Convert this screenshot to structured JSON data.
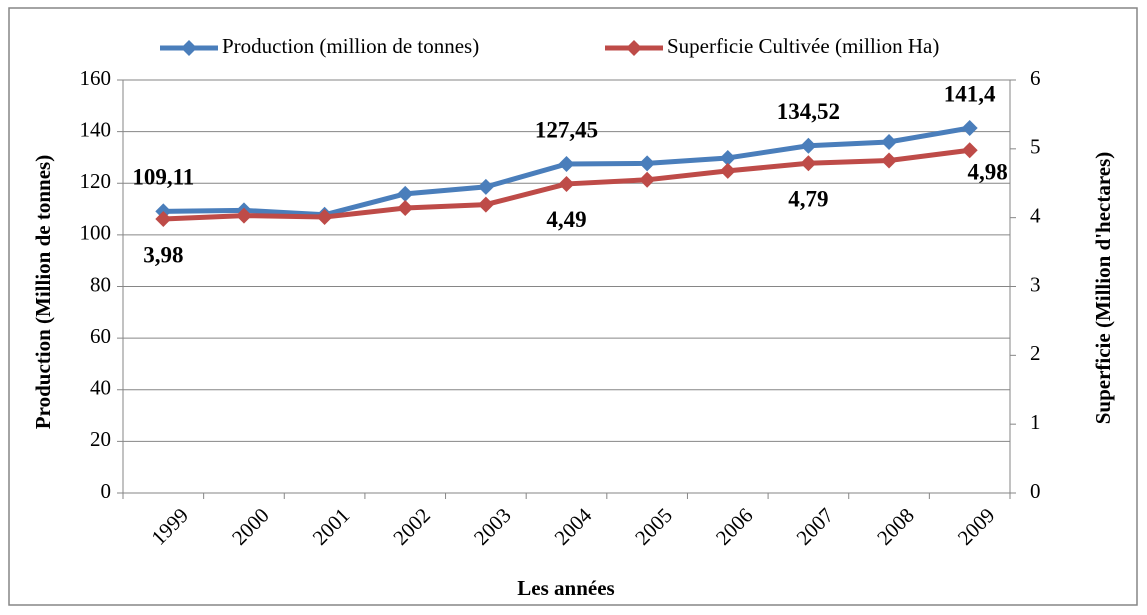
{
  "chart_data": {
    "type": "line",
    "categories": [
      "1999",
      "2000",
      "2001",
      "2002",
      "2003",
      "2004",
      "2005",
      "2006",
      "2007",
      "2008",
      "2009"
    ],
    "series": [
      {
        "name": "Production (million de tonnes)",
        "color": "#4a7ebb",
        "values": [
          109.11,
          109.5,
          107.8,
          115.9,
          118.6,
          127.45,
          127.7,
          129.8,
          134.52,
          136,
          141.4
        ],
        "value_labels": [
          "109,11",
          null,
          null,
          null,
          null,
          "127,45",
          null,
          null,
          "134,52",
          null,
          "141,4"
        ]
      },
      {
        "name": "Superficie Cultivée (million Ha)",
        "color": "#be4b48",
        "axis": "y2",
        "values": [
          3.98,
          4.03,
          4.01,
          4.14,
          4.19,
          4.49,
          4.55,
          4.68,
          4.79,
          4.83,
          4.98
        ],
        "value_labels": [
          "3,98",
          null,
          null,
          null,
          null,
          "4,49",
          null,
          null,
          "4,79",
          null,
          "4,98"
        ]
      }
    ],
    "ylabel": "Production (Million de tonnes)",
    "y2label": "Superficie (Million d'hectares)",
    "xlabel": "Les années",
    "ylim": [
      0,
      160
    ],
    "yticks": [
      0,
      20,
      40,
      60,
      80,
      100,
      120,
      140,
      160
    ],
    "y2lim": [
      0,
      6
    ],
    "y2ticks": [
      0,
      1,
      2,
      3,
      4,
      5,
      6
    ],
    "grid": true,
    "legend": "top"
  }
}
